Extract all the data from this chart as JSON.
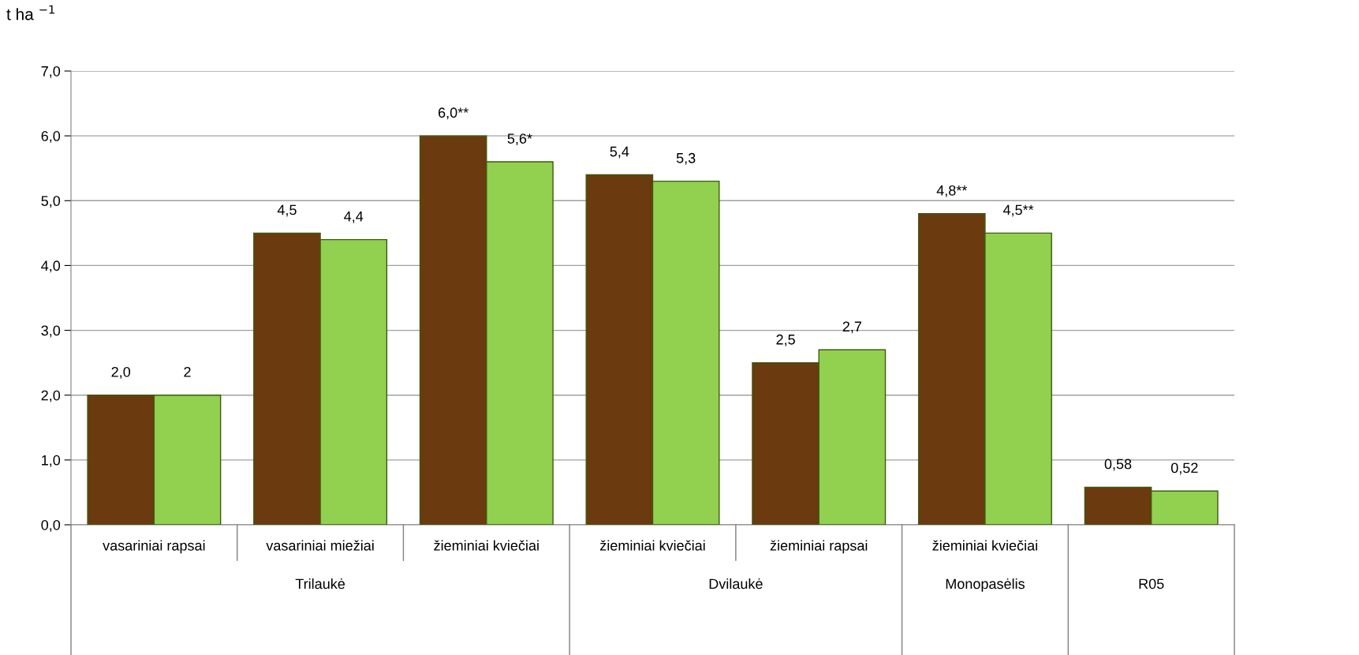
{
  "chart_data": {
    "type": "bar",
    "ylabel": "t ha $^{−1}$",
    "categories": [
      "vasariniai rapsai",
      "vasariniai miežiai",
      "žieminiai kviečiai",
      "žieminiai kviečiai",
      "žieminiai rapsai",
      "žieminiai kviečiai",
      null
    ],
    "series": [
      {
        "color": "#6b3a0f",
        "values": [
          2.0,
          4.5,
          6.0,
          5.4,
          2.5,
          4.8,
          0.58
        ],
        "value_labels": [
          "2,0",
          "4,5",
          "6,0**",
          "5,4",
          "2,5",
          "4,8**",
          "0,58"
        ]
      },
      {
        "color": "#92d050",
        "values": [
          2.0,
          4.4,
          5.6,
          5.3,
          2.7,
          4.5,
          0.52
        ],
        "value_labels": [
          "2",
          "4,4",
          "5,6*",
          "5,3",
          "2,7",
          "4,5**",
          "0,52"
        ]
      }
    ],
    "ylim": [
      0,
      7
    ],
    "yticks": [
      {
        "value": 0,
        "label": "0,0"
      },
      {
        "value": 1,
        "label": "1,0"
      },
      {
        "value": 2,
        "label": "2,0"
      },
      {
        "value": 3,
        "label": "3,0"
      },
      {
        "value": 4,
        "label": "4,0"
      },
      {
        "value": 5,
        "label": "5,0"
      },
      {
        "value": 6,
        "label": "6,0"
      },
      {
        "value": 7,
        "label": "7,0"
      }
    ],
    "grid": "y",
    "legend": false,
    "annotations": [
      "Trilaukė",
      "Dvilaukė",
      "Monopasėlis",
      "R05"
    ]
  }
}
